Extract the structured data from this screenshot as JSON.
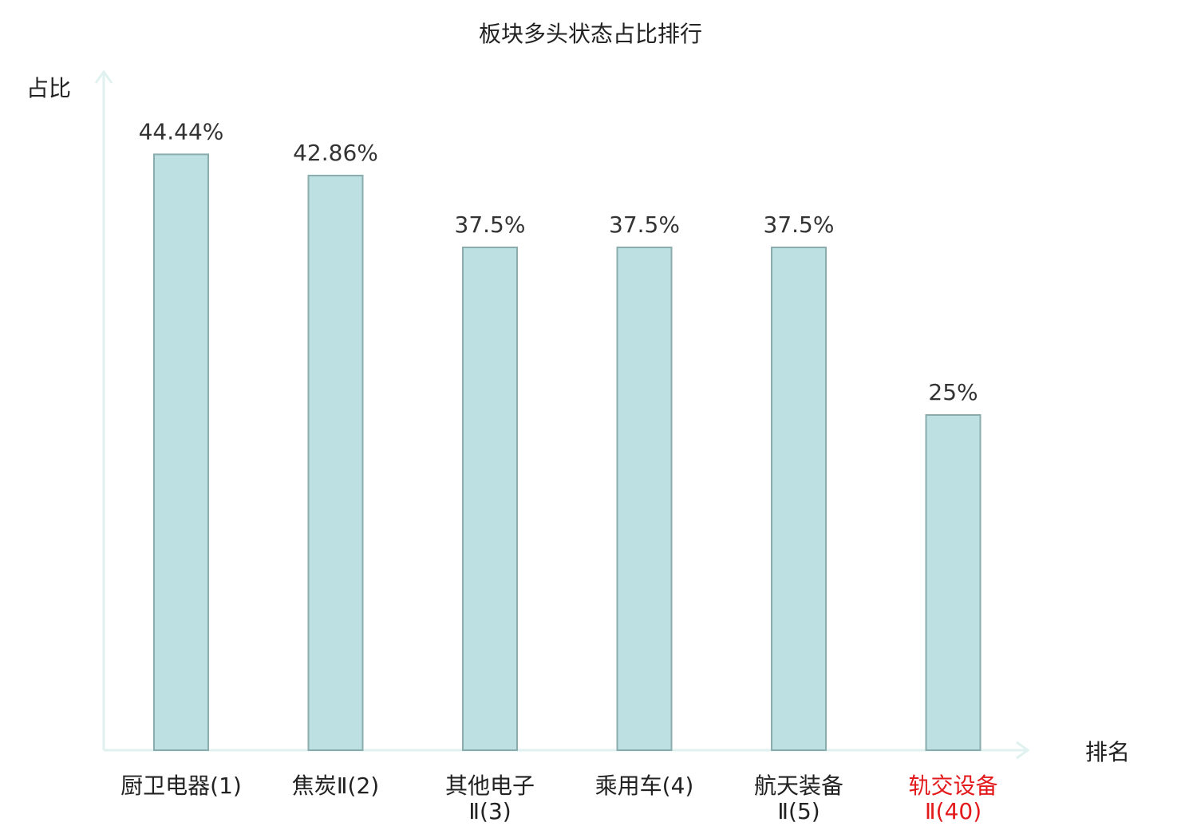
{
  "chart_data": {
    "type": "bar",
    "title": "板块多头状态占比排行",
    "ylabel": "占比",
    "xlabel": "排名",
    "categories": [
      [
        "厨卫电器(1)"
      ],
      [
        "焦炭Ⅱ(2)"
      ],
      [
        "其他电子",
        "Ⅱ(3)"
      ],
      [
        "乘用车(4)"
      ],
      [
        "航天装备",
        "Ⅱ(5)"
      ],
      [
        "轨交设备",
        "Ⅱ(40)"
      ]
    ],
    "values": [
      44.44,
      42.86,
      37.5,
      37.5,
      37.5,
      25
    ],
    "value_labels": [
      "44.44%",
      "42.86%",
      "37.5%",
      "37.5%",
      "37.5%",
      "25%"
    ],
    "highlight_index": 5,
    "ylim": [
      0,
      50
    ],
    "grid": false,
    "colors": {
      "bar_fill": "#bde0e3",
      "bar_stroke": "#8aacad",
      "axis": "#e0f2ef",
      "label_text": "#222222",
      "highlight_text": "#e31a1c"
    }
  }
}
